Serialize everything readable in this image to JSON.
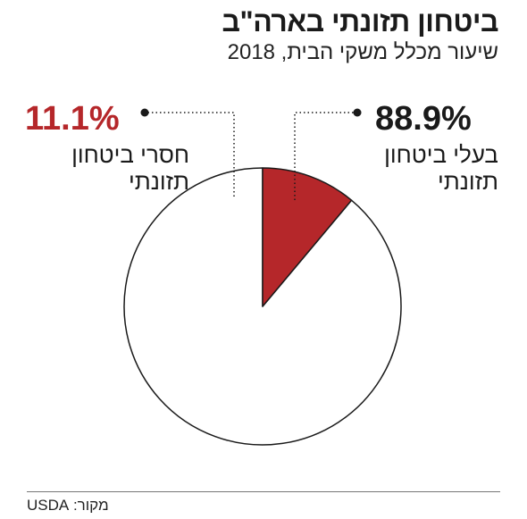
{
  "header": {
    "title": "ביטחון תזונתי בארה\"ב",
    "subtitle": "שיעור מכלל משקי הבית, 2018"
  },
  "chart_data": {
    "type": "pie",
    "title": "ביטחון תזונתי בארה\"ב",
    "subtitle": "שיעור מכלל משקי הבית, 2018",
    "slices": [
      {
        "label_line1": "בעלי ביטחון",
        "label_line2": "תזונתי",
        "value": 88.9,
        "value_label": "88.9%",
        "color": "#ffffff"
      },
      {
        "label_line1": "חסרי ביטחון",
        "label_line2": "תזונתי",
        "value": 11.1,
        "value_label": "11.1%",
        "color": "#b5272a"
      }
    ],
    "start_angle": "12 o'clock",
    "direction": "counterclockwise"
  },
  "colors": {
    "accent": "#b5272a",
    "text": "#1a1a1a",
    "outline": "#1a1a1a"
  },
  "footer": {
    "source": "מקור: USDA"
  }
}
